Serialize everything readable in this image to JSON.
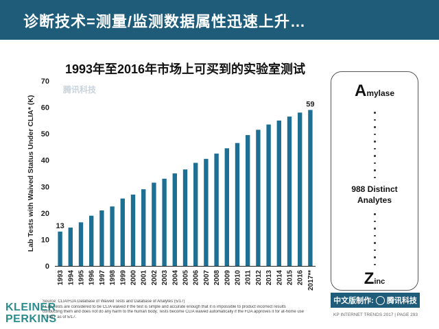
{
  "header": {
    "title": "诊断技术=测量/监测数据属性迅速上升…"
  },
  "chart_data": {
    "type": "bar",
    "title": "1993年至2016年市场上可买到的实验室测试",
    "ylabel": "Lab Tests with Waived Status Under CLIA* (K)",
    "xlabel": "",
    "categories": [
      "1993",
      "1994",
      "1995",
      "1996",
      "1997",
      "1998",
      "1999",
      "2000",
      "2001",
      "2002",
      "2003",
      "2004",
      "2005",
      "2006",
      "2007",
      "2008",
      "2009",
      "2010",
      "2011",
      "2012",
      "2013",
      "2014",
      "2015",
      "2016",
      "2017**"
    ],
    "values": [
      13,
      14.5,
      16.5,
      19,
      21,
      22.5,
      25.5,
      27,
      29,
      31.5,
      33,
      35,
      36.5,
      39,
      40.5,
      42.5,
      44.5,
      46.5,
      49.5,
      51.5,
      53.5,
      55,
      56.5,
      58,
      59
    ],
    "data_labels": [
      {
        "index": 0,
        "text": "13"
      },
      {
        "index": 24,
        "text": "59"
      }
    ],
    "yticks": [
      "0",
      "10",
      "20",
      "30",
      "40",
      "50",
      "60",
      "70"
    ],
    "ylim": [
      0,
      70
    ],
    "bar_color": "#1e6f94",
    "grid": false
  },
  "analytes": {
    "top_letter": "A",
    "top_rest": "mylase",
    "middle_line1": "988 Distinct",
    "middle_line2": "Analytes",
    "bottom_letter": "Z",
    "bottom_rest": "inc"
  },
  "logo": {
    "line1": "KLEINER",
    "line2": "PERKINS"
  },
  "source": {
    "line1": "Source: CLIA/FDA Database of Waived Tests and Database of Analytes (5/17)",
    "line2": "* Lab Tests are considered to be CLIA waived if the test is simple and accurate enough that it is impossible to product incorrect results",
    "line3": "conducting them and does not do any harm to the human body. Tests become CLIA waived automatically if the FDA approves it for at-home use",
    "line4": "** 2017 as of 5/17."
  },
  "tencent": {
    "prefix": "中文版制作:",
    "brand": "腾讯科技"
  },
  "footer": {
    "text": "KP INTERNET TRENDS 2017 | PAGE 293"
  },
  "watermarks": {
    "text": "腾讯科技"
  },
  "colors": {
    "header": "#1f5c7a",
    "bar": "#1e6f94",
    "logo": "#2a8c8c"
  }
}
